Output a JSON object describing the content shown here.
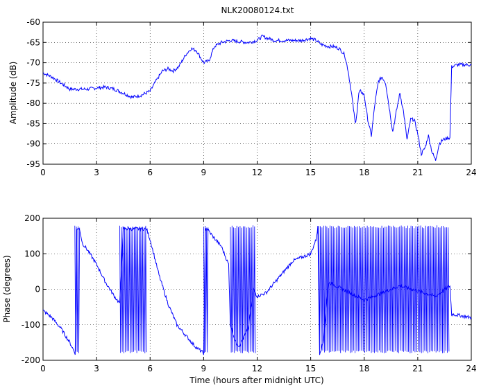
{
  "chart_data": [
    {
      "type": "line",
      "title": "NLK20080124.txt",
      "xlabel": "",
      "ylabel": "Amplitude (dB)",
      "xlim": [
        0,
        24
      ],
      "ylim": [
        -95,
        -60
      ],
      "xticks": [
        0,
        3,
        6,
        9,
        12,
        15,
        18,
        21,
        24
      ],
      "yticks": [
        -95,
        -90,
        -85,
        -80,
        -75,
        -70,
        -65,
        -60
      ],
      "grid": "dotted",
      "color": "#0000ff",
      "series": [
        {
          "x": [
            0,
            0.5,
            1,
            1.5,
            2,
            2.5,
            3,
            3.5,
            4,
            4.5,
            5,
            5.5,
            6,
            6.4,
            6.7,
            7,
            7.3,
            7.6,
            8,
            8.3,
            8.6,
            9,
            9.3,
            9.6,
            10,
            10.5,
            11,
            11.5,
            12,
            12.3,
            12.6,
            13,
            13.5,
            14,
            14.5,
            15,
            15.3,
            15.6,
            16,
            16.3,
            16.6,
            16.9,
            17.1,
            17.3,
            17.5,
            17.6,
            17.7,
            17.8,
            18,
            18.2,
            18.4,
            18.6,
            18.8,
            19,
            19.2,
            19.4,
            19.6,
            19.8,
            20,
            20.2,
            20.4,
            20.6,
            20.8,
            21,
            21.2,
            21.4,
            21.6,
            21.8,
            22,
            22.2,
            22.4,
            22.7,
            22.8,
            22.9,
            23.2,
            23.6,
            24
          ],
          "y": [
            -72.5,
            -73.5,
            -75,
            -76.5,
            -76.5,
            -76.5,
            -76.2,
            -76,
            -76.5,
            -77.5,
            -78.5,
            -78,
            -77,
            -74,
            -72,
            -71.5,
            -72,
            -71,
            -68,
            -66.5,
            -67,
            -70,
            -69.5,
            -66,
            -65,
            -64.5,
            -64.8,
            -65,
            -64.5,
            -63.5,
            -64,
            -64.5,
            -64.5,
            -64.5,
            -64.5,
            -64,
            -64.5,
            -65.5,
            -66,
            -66,
            -66.5,
            -68,
            -72,
            -78,
            -85,
            -82,
            -77.5,
            -77,
            -78,
            -84,
            -88,
            -80,
            -74.5,
            -73.5,
            -75,
            -81,
            -87,
            -82,
            -77.5,
            -82,
            -89,
            -84,
            -84,
            -87.5,
            -92.5,
            -91,
            -88,
            -92,
            -94,
            -90,
            -89,
            -88.5,
            -88.5,
            -71,
            -70.5,
            -70.5,
            -70.5
          ]
        }
      ]
    },
    {
      "type": "line",
      "title": "",
      "xlabel": "Time (hours after midnight UTC)",
      "ylabel": "Phase (degrees)",
      "xlim": [
        0,
        24
      ],
      "ylim": [
        -200,
        200
      ],
      "xticks": [
        0,
        3,
        6,
        9,
        12,
        15,
        18,
        21,
        24
      ],
      "yticks": [
        -200,
        -100,
        0,
        100,
        200
      ],
      "grid": "dotted",
      "color": "#0000ff",
      "series": [
        {
          "x": [
            0,
            0.5,
            1,
            1.5,
            1.8,
            1.9,
            2.05,
            2.2,
            2.5,
            3,
            3.5,
            4,
            4.3,
            4.5,
            5,
            5.5,
            5.8,
            6,
            6.5,
            7,
            7.5,
            8,
            8.5,
            9,
            9.1,
            9.2,
            9.5,
            10,
            10.4,
            10.5,
            10.8,
            11,
            11.5,
            11.8,
            12,
            12.5,
            13,
            13.5,
            14,
            14.5,
            15,
            15.3,
            15.4,
            15.5,
            15.7,
            16,
            18,
            20,
            22,
            22.8,
            22.9,
            23.5,
            24
          ],
          "y": [
            -60,
            -80,
            -110,
            -150,
            -180,
            170,
            170,
            130,
            110,
            70,
            20,
            -20,
            -40,
            170,
            170,
            170,
            170,
            140,
            40,
            -40,
            -100,
            -130,
            -160,
            -180,
            170,
            170,
            150,
            120,
            70,
            -100,
            -150,
            -160,
            -110,
            0,
            -20,
            -10,
            20,
            50,
            80,
            90,
            100,
            140,
            175,
            -180,
            -150,
            20,
            -30,
            10,
            -20,
            10,
            -70,
            -75,
            -80
          ]
        },
        {
          "x_intervals": [
            [
              1.78,
              2.05
            ],
            [
              4.3,
              5.8
            ],
            [
              9.0,
              9.25
            ],
            [
              10.5,
              11.9
            ],
            [
              15.45,
              22.75
            ]
          ],
          "y_range": [
            -180,
            180
          ],
          "note_type": "wrap"
        }
      ]
    }
  ]
}
